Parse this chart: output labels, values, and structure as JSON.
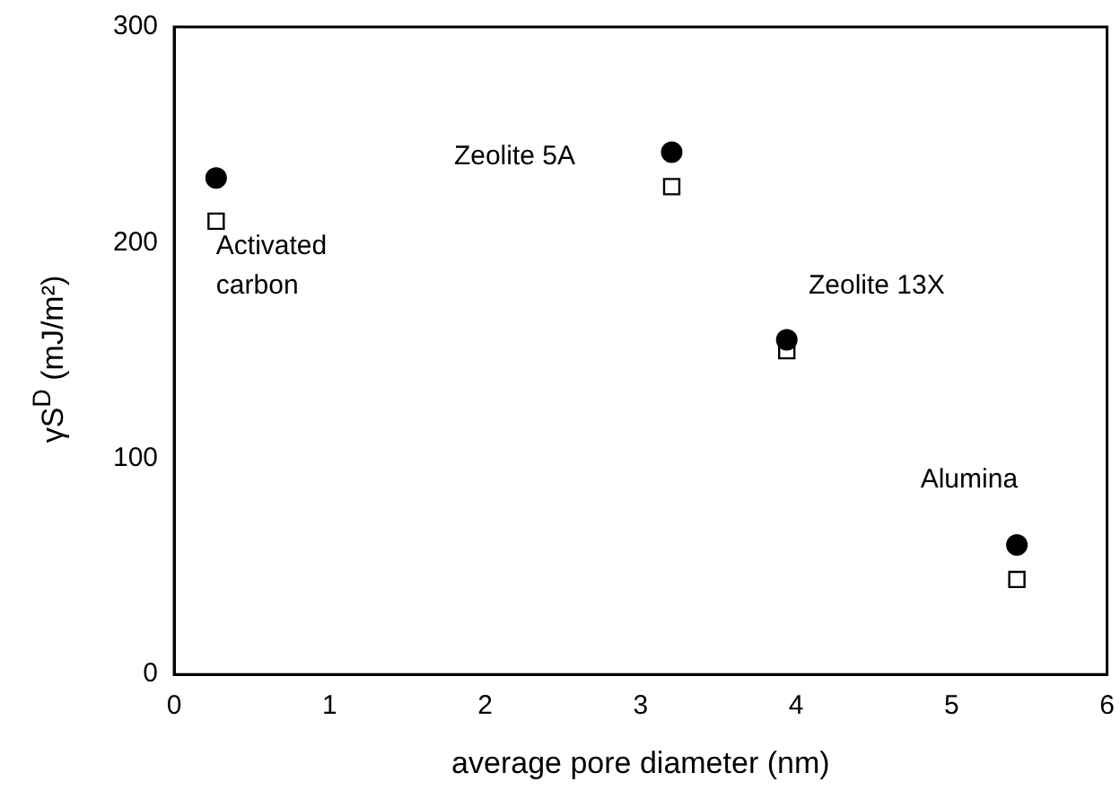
{
  "chart_data": {
    "type": "scatter",
    "xlabel": "average pore diameter (nm)",
    "ylabel": "γS$^{D}$ (mJ/m²)",
    "xlim": [
      0,
      6
    ],
    "xticks": [
      0,
      1,
      2,
      3,
      4,
      5,
      6
    ],
    "ylim": [
      0,
      300
    ],
    "yticks": [
      0,
      100,
      200,
      300
    ],
    "grid": false,
    "legend": false,
    "series": [
      {
        "color": "#000000",
        "marker": "circle",
        "x": [
          0.27,
          3.2,
          3.94,
          5.42
        ],
        "values": [
          230,
          242,
          155,
          60
        ]
      },
      {
        "color": "#000000",
        "marker": "square",
        "x": [
          0.27,
          3.2,
          3.94,
          5.42
        ],
        "values": [
          210,
          226,
          150,
          44
        ]
      }
    ],
    "annotations": [
      "Activated\ncarbon",
      "Zeolite 5A",
      "Zeolite 13X",
      "Alumina"
    ]
  }
}
